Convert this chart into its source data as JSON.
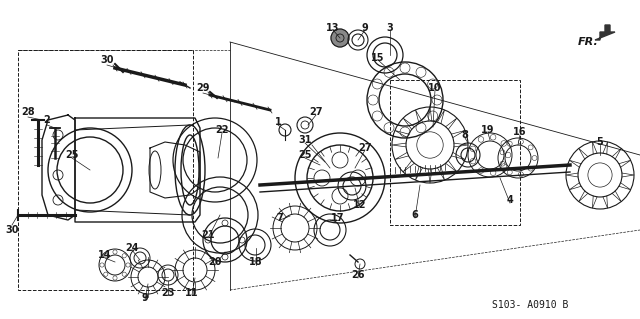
{
  "bg_color": "#ffffff",
  "line_color": "#1a1a1a",
  "text_color": "#1a1a1a",
  "note_text": "S103- A0910 B",
  "direction_label": "FR.",
  "figsize": [
    6.4,
    3.19
  ],
  "dpi": 100,
  "xlim": [
    0,
    640
  ],
  "ylim": [
    0,
    319
  ]
}
